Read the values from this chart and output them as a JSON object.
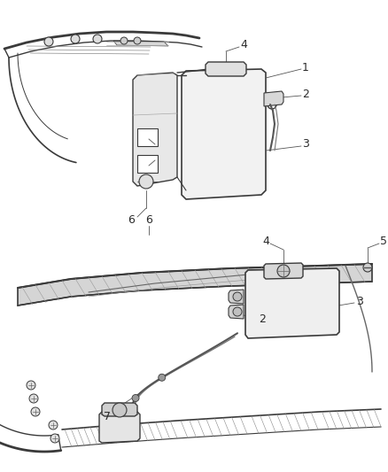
{
  "bg_color": "#ffffff",
  "line_color": "#3a3a3a",
  "label_color": "#2a2a2a",
  "fig_width": 4.38,
  "fig_height": 5.33,
  "dpi": 100
}
